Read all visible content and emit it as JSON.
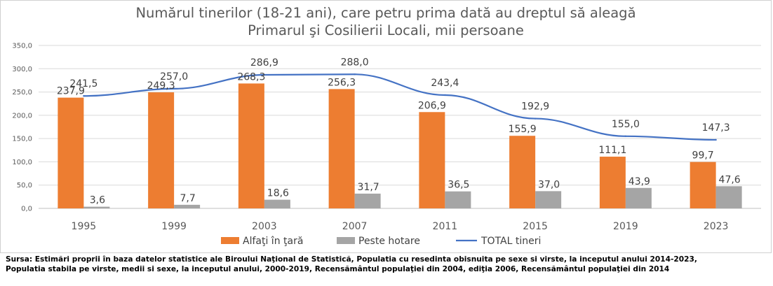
{
  "chart_data": {
    "type": "bar",
    "title": "Numărul tinerilor (18-21 ani), care petru prima dată au dreptul să aleagă Primarul şi Cosilierii Locali, mii persoane",
    "title_lines": [
      "Numărul tinerilor (18-21 ani), care petru prima dată au dreptul să aleagă",
      "Primarul şi Cosilierii Locali, mii persoane"
    ],
    "categories": [
      "1995",
      "1999",
      "2003",
      "2007",
      "2011",
      "2015",
      "2019",
      "2023"
    ],
    "series": [
      {
        "name": "Alfaţi în ţară",
        "type": "bar",
        "color": "#ED7D31",
        "values": [
          237.9,
          249.3,
          268.3,
          256.3,
          206.9,
          155.9,
          111.1,
          99.7
        ],
        "labels": [
          "237,9",
          "249,3",
          "268,3",
          "256,3",
          "206,9",
          "155,9",
          "111,1",
          "99,7"
        ]
      },
      {
        "name": "Peste hotare",
        "type": "bar",
        "color": "#A5A5A5",
        "values": [
          3.6,
          7.7,
          18.6,
          31.7,
          36.5,
          37.0,
          43.9,
          47.6
        ],
        "labels": [
          "3,6",
          "7,7",
          "18,6",
          "31,7",
          "36,5",
          "37,0",
          "43,9",
          "47,6"
        ]
      },
      {
        "name": "TOTAL tineri",
        "type": "line",
        "color": "#4472C4",
        "values": [
          241.5,
          257.0,
          286.9,
          288.0,
          243.4,
          192.9,
          155.0,
          147.3
        ],
        "labels": [
          "241,5",
          "257,0",
          "286,9",
          "288,0",
          "243,4",
          "192,9",
          "155,0",
          "147,3"
        ]
      }
    ],
    "y_ticks": [
      "0,0",
      "50,0",
      "100,0",
      "150,0",
      "200,0",
      "250,0",
      "300,0",
      "350,0"
    ],
    "ylim": [
      0,
      350
    ],
    "grid": true,
    "legend_position": "bottom"
  },
  "source_note": [
    "Sursa: Estimări proprii în baza datelor statistice ale Biroului Naţional de Statistică, Populatia cu resedinta obisnuita pe sexe si virste, la inceputul anului 2014-2023,",
    "Populatia stabila pe virste, medii si sexe, la inceputul anului, 2000-2019, Recensământul populaţiei din 2004, ediţia 2006, Recensământul populaţiei din 2014"
  ]
}
